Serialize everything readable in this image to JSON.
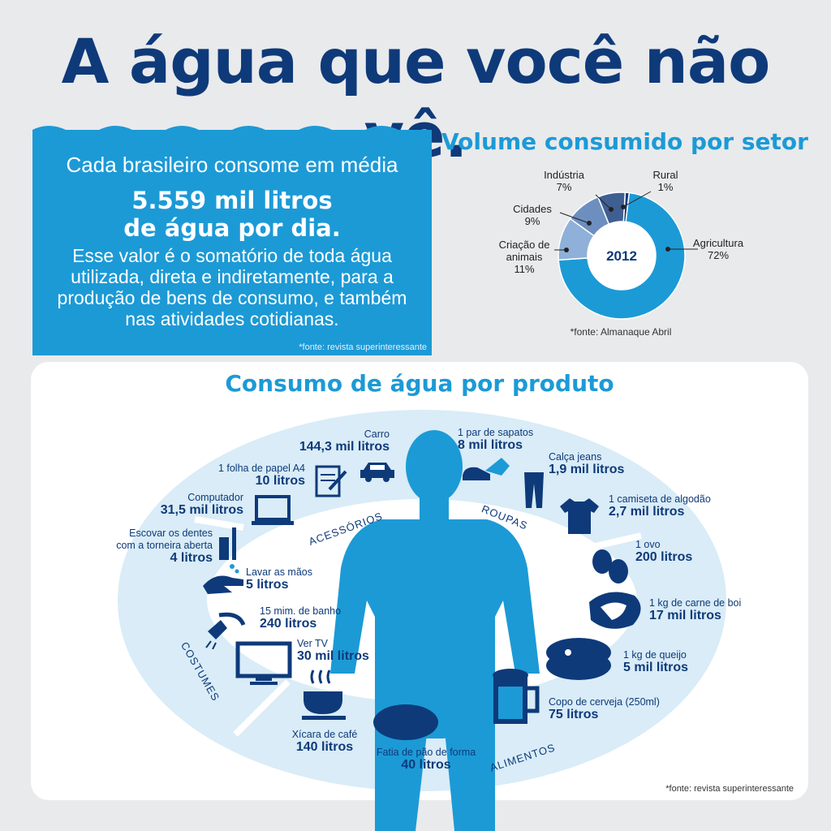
{
  "title": "A água que você não vê.",
  "stat": {
    "intro": "Cada brasileiro consome em média",
    "highlight_1": "5.559 mil litros",
    "highlight_2": "de água por dia.",
    "explain": [
      "Esse valor é o somatório de toda água",
      "utilizada, direta e indiretamente, para a",
      "produção de bens de consumo, e também",
      "nas atividades cotidianas."
    ],
    "source": "*fonte: revista superinteressante"
  },
  "sector": {
    "title": "Volume consumido por setor",
    "center": "2012",
    "source": "*fonte: Almanaque Abril",
    "colors": {
      "agricultura": "#1c9ad6",
      "criacao": "#8fb0d8",
      "cidades": "#6d8fc0",
      "industria": "#3f5f92",
      "rural": "#0e3a7a"
    },
    "slices": [
      {
        "name": "Agricultura",
        "pct": "72%",
        "value": 72
      },
      {
        "name": "Criação de animais",
        "pct": "11%",
        "value": 11
      },
      {
        "name": "Cidades",
        "pct": "9%",
        "value": 9
      },
      {
        "name": "Indústria",
        "pct": "7%",
        "value": 7
      },
      {
        "name": "Rural",
        "pct": "1%",
        "value": 1
      }
    ]
  },
  "product": {
    "title": "Consumo de água por produto",
    "source": "*fonte: revista superinteressante",
    "categories": {
      "acessorios": "ACESSÓRIOS",
      "roupas": "ROUPAS",
      "alimentos": "ALIMENTOS",
      "costumes": "COSTUMES"
    },
    "items": {
      "carro": {
        "name": "Carro",
        "value": "144,3 mil litros"
      },
      "papel": {
        "name": "1 folha de papel A4",
        "value": "10 litros"
      },
      "computador": {
        "name": "Computador",
        "value": "31,5 mil litros"
      },
      "dentes": {
        "name_1": "Escovar os dentes",
        "name_2": "com a torneira aberta",
        "value": "4 litros"
      },
      "maos": {
        "name": "Lavar as mãos",
        "value": "5 litros"
      },
      "banho": {
        "name": "15 mim. de banho",
        "value": "240 litros"
      },
      "tv": {
        "name": "Ver TV",
        "value": "30 mil litros"
      },
      "cafe": {
        "name": "Xícara de café",
        "value": "140 litros"
      },
      "pao": {
        "name": "Fatia de pão de forma",
        "value": "40 litros"
      },
      "sapatos": {
        "name": "1 par de sapatos",
        "value": "8 mil litros"
      },
      "jeans": {
        "name": "Calça jeans",
        "value": "1,9 mil litros"
      },
      "camiseta": {
        "name": "1 camiseta de algodão",
        "value": "2,7 mil litros"
      },
      "ovo": {
        "name": "1 ovo",
        "value": "200 litros"
      },
      "carne": {
        "name": "1 kg de carne de boi",
        "value": "17 mil litros"
      },
      "queijo": {
        "name": "1 kg de queijo",
        "value": "5 mil litros"
      },
      "cerveja": {
        "name": "Copo de cerveja (250ml)",
        "value": "75 litros"
      }
    }
  }
}
